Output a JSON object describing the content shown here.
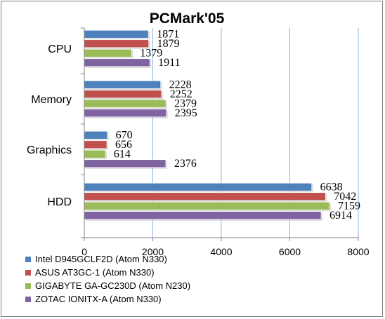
{
  "chart_data": {
    "type": "bar",
    "orientation": "horizontal",
    "title": "PCMark'05",
    "categories": [
      "CPU",
      "Memory",
      "Graphics",
      "HDD"
    ],
    "series": [
      {
        "name": "Intel D945GCLF2D (Atom N330)",
        "color": "#4f81bd",
        "values": [
          1871,
          2228,
          670,
          6638
        ]
      },
      {
        "name": "ASUS AT3GC-1 (Atom N330)",
        "color": "#c0504d",
        "values": [
          1879,
          2252,
          656,
          7042
        ]
      },
      {
        "name": "GIGABYTE GA-GC230D (Atom N230)",
        "color": "#9bbb59",
        "values": [
          1379,
          2379,
          614,
          7159
        ]
      },
      {
        "name": "ZOTAC IONITX-A (Atom N330)",
        "color": "#8064a2",
        "values": [
          1911,
          2395,
          2376,
          6914
        ]
      }
    ],
    "xlim": [
      0,
      8000
    ],
    "xticks": [
      0,
      2000,
      4000,
      6000,
      8000
    ],
    "grid": true,
    "legend": "bottom"
  }
}
